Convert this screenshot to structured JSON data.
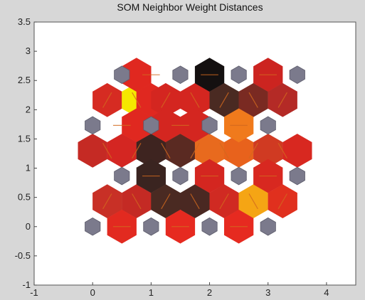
{
  "chart_data": {
    "type": "heatmap",
    "title": "SOM Neighbor Weight Distances",
    "xlabel": "",
    "ylabel": "",
    "xlim": [
      -1,
      4.5
    ],
    "ylim": [
      -1,
      3.5
    ],
    "xticks": [
      "-1",
      "0",
      "1",
      "2",
      "3",
      "4"
    ],
    "yticks": [
      "-1",
      "-0.5",
      "0",
      "0.5",
      "1",
      "1.5",
      "2",
      "2.5",
      "3",
      "3.5"
    ],
    "grid": false,
    "neuron_marker_color": "#7b7a8c",
    "neurons": [
      {
        "x": 0,
        "y": 0
      },
      {
        "x": 1,
        "y": 0
      },
      {
        "x": 2,
        "y": 0
      },
      {
        "x": 3,
        "y": 0
      },
      {
        "x": 0.5,
        "y": 0.866
      },
      {
        "x": 1.5,
        "y": 0.866
      },
      {
        "x": 2.5,
        "y": 0.866
      },
      {
        "x": 3.5,
        "y": 0.866
      },
      {
        "x": 0,
        "y": 1.732
      },
      {
        "x": 1,
        "y": 1.732
      },
      {
        "x": 2,
        "y": 1.732
      },
      {
        "x": 3,
        "y": 1.732
      },
      {
        "x": 0.5,
        "y": 2.598
      },
      {
        "x": 1.5,
        "y": 2.598
      },
      {
        "x": 2.5,
        "y": 2.598
      },
      {
        "x": 3.5,
        "y": 2.598
      }
    ],
    "distance_cells": [
      {
        "x": 0.25,
        "y": 2.165,
        "color": "#d62b22"
      },
      {
        "x": 0.75,
        "y": 2.165,
        "color": "#f5e800"
      },
      {
        "x": 0.75,
        "y": 2.598,
        "color": "#e02820"
      },
      {
        "x": 1.0,
        "y": 2.165,
        "color": "#e02820"
      },
      {
        "x": 1.25,
        "y": 2.165,
        "color": "#d42620"
      },
      {
        "x": 1.75,
        "y": 2.165,
        "color": "#d42620"
      },
      {
        "x": 2.0,
        "y": 2.598,
        "color": "#141010"
      },
      {
        "x": 2.25,
        "y": 2.165,
        "color": "#4a2a22"
      },
      {
        "x": 2.75,
        "y": 2.165,
        "color": "#7a2a22"
      },
      {
        "x": 3.0,
        "y": 2.598,
        "color": "#cc2420"
      },
      {
        "x": 3.25,
        "y": 2.165,
        "color": "#b42a26"
      },
      {
        "x": 0.0,
        "y": 1.299,
        "color": "#c52a24"
      },
      {
        "x": 0.5,
        "y": 1.299,
        "color": "#d42622"
      },
      {
        "x": 0.75,
        "y": 1.732,
        "color": "#e02820"
      },
      {
        "x": 1.0,
        "y": 1.299,
        "color": "#3e2420"
      },
      {
        "x": 1.25,
        "y": 1.732,
        "color": "#d42620"
      },
      {
        "x": 1.5,
        "y": 1.299,
        "color": "#5a2a22"
      },
      {
        "x": 1.75,
        "y": 1.732,
        "color": "#d42620"
      },
      {
        "x": 2.0,
        "y": 1.299,
        "color": "#e86a1e"
      },
      {
        "x": 2.5,
        "y": 1.299,
        "color": "#e8621c"
      },
      {
        "x": 2.5,
        "y": 1.732,
        "color": "#f07a1c"
      },
      {
        "x": 3.0,
        "y": 1.299,
        "color": "#d03a22"
      },
      {
        "x": 3.5,
        "y": 1.299,
        "color": "#d82820"
      },
      {
        "x": 0.25,
        "y": 0.433,
        "color": "#c83026"
      },
      {
        "x": 0.75,
        "y": 0.433,
        "color": "#c42a24"
      },
      {
        "x": 1.0,
        "y": 0.866,
        "color": "#3a2420"
      },
      {
        "x": 1.25,
        "y": 0.433,
        "color": "#4a2a22"
      },
      {
        "x": 1.75,
        "y": 0.433,
        "color": "#4a2822"
      },
      {
        "x": 2.0,
        "y": 0.866,
        "color": "#d42620"
      },
      {
        "x": 2.25,
        "y": 0.433,
        "color": "#d02a22"
      },
      {
        "x": 2.75,
        "y": 0.433,
        "color": "#f5a514"
      },
      {
        "x": 3.0,
        "y": 0.866,
        "color": "#d82820"
      },
      {
        "x": 3.25,
        "y": 0.433,
        "color": "#e0301e"
      },
      {
        "x": 0.5,
        "y": 0.0,
        "color": "#e22a20"
      },
      {
        "x": 1.5,
        "y": 0.0,
        "color": "#e62a20"
      },
      {
        "x": 2.5,
        "y": 0.0,
        "color": "#e62a20"
      }
    ]
  }
}
